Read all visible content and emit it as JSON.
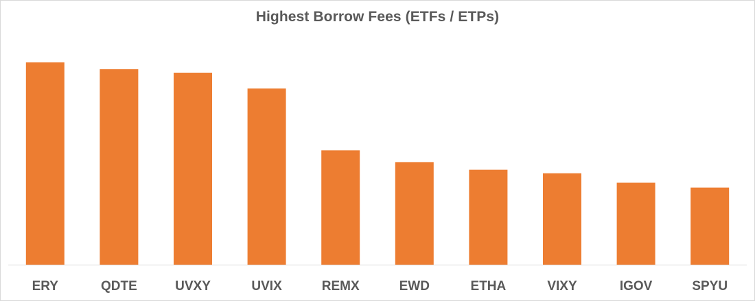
{
  "chart_data": {
    "type": "bar",
    "title": "Highest Borrow Fees (ETFs / ETPs)",
    "xlabel": "",
    "ylabel": "",
    "categories": [
      "ERY",
      "QDTE",
      "UVXY",
      "UVIX",
      "REMX",
      "EWD",
      "ETHA",
      "VIXY",
      "IGOV",
      "SPYU"
    ],
    "series": [
      {
        "values": [
          100,
          96.6,
          94.9,
          87.1,
          56.5,
          50.7,
          46.9,
          45.2,
          40.5,
          38.1
        ]
      }
    ],
    "ylim": [
      0,
      100
    ],
    "y_axis_visible": false,
    "grid": false,
    "legend": "none",
    "colors": {
      "bar": "#ed7d31",
      "text": "#595959",
      "axis": "#d9d9d9"
    }
  }
}
